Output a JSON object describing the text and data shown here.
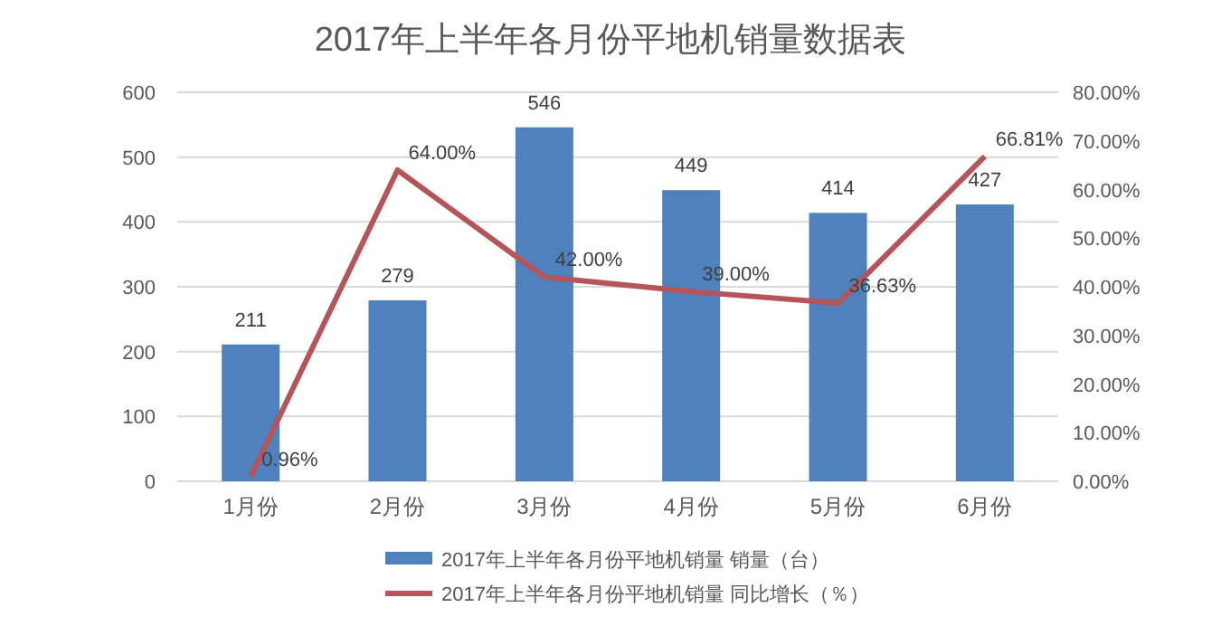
{
  "chart_data": {
    "type": "bar",
    "title": "2017年上半年各月份平地机销量数据表",
    "categories": [
      "1月份",
      "2月份",
      "3月份",
      "4月份",
      "5月份",
      "6月份"
    ],
    "series": [
      {
        "name": "2017年上半年各月份平地机销量 销量（台）",
        "color": "#4f81bd",
        "values": [
          211,
          279,
          546,
          449,
          414,
          427
        ],
        "value_labels": [
          "211",
          "279",
          "546",
          "449",
          "414",
          "427"
        ]
      },
      {
        "name": "2017年上半年各月份平地机销量 同比增长（％）",
        "type": "line",
        "axis": "y2",
        "color": "#b5555a",
        "values": [
          0.96,
          64.0,
          42.0,
          39.0,
          36.63,
          66.81
        ],
        "value_labels": [
          "0.96%",
          "64.00%",
          "42.00%",
          "39.00%",
          "36.63%",
          "66.81%"
        ]
      }
    ],
    "ylim": [
      0,
      600
    ],
    "yticks": [
      0,
      100,
      200,
      300,
      400,
      500,
      600
    ],
    "y2lim": [
      0,
      80
    ],
    "y2ticks": [
      {
        "value": 0,
        "label": "0.00%"
      },
      {
        "value": 10,
        "label": "10.00%"
      },
      {
        "value": 20,
        "label": "20.00%"
      },
      {
        "value": 30,
        "label": "30.00%"
      },
      {
        "value": 40,
        "label": "40.00%"
      },
      {
        "value": 50,
        "label": "50.00%"
      },
      {
        "value": 60,
        "label": "60.00%"
      },
      {
        "value": 70,
        "label": "70.00%"
      },
      {
        "value": 80,
        "label": "80.00%"
      }
    ],
    "grid": "y",
    "legend": "bottom",
    "marker": "none",
    "line_style": "solid"
  }
}
